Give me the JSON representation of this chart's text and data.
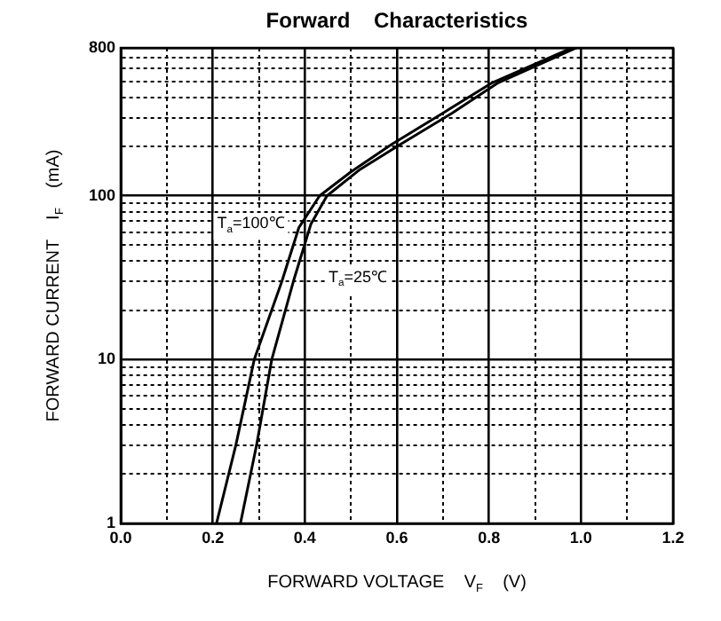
{
  "chart_data": {
    "type": "line",
    "title": "Forward    Characteristics",
    "xlabel": "FORWARD VOLTAGE    V$_{F}$    (V)",
    "ylabel": "FORWARD CURRENT    I$_{F}$    (mA)",
    "series": [
      {
        "name": "T$_{a}$=100℃",
        "color": "#000000",
        "x": [
          0.208,
          0.25,
          0.29,
          0.35,
          0.387,
          0.432,
          0.5,
          0.587,
          0.7,
          0.807,
          0.98
        ],
        "values": [
          1,
          3,
          10,
          30,
          64,
          100,
          140,
          205,
          320,
          490,
          800
        ]
      },
      {
        "name": "T$_{a}$=25℃",
        "color": "#000000",
        "x": [
          0.26,
          0.295,
          0.328,
          0.375,
          0.413,
          0.448,
          0.52,
          0.606,
          0.72,
          0.82,
          0.99
        ],
        "values": [
          1,
          3,
          10,
          30,
          67,
          100,
          145,
          205,
          320,
          490,
          800
        ]
      }
    ],
    "xlim": [
      0,
      1.2
    ],
    "xticks": [
      {
        "value": 0,
        "label": "0.0"
      },
      {
        "value": 0.1,
        "label": null
      },
      {
        "value": 0.2,
        "label": "0.2"
      },
      {
        "value": 0.3,
        "label": null
      },
      {
        "value": 0.4,
        "label": "0.4"
      },
      {
        "value": 0.5,
        "label": null
      },
      {
        "value": 0.6,
        "label": "0.6"
      },
      {
        "value": 0.7,
        "label": null
      },
      {
        "value": 0.8,
        "label": "0.8"
      },
      {
        "value": 0.9,
        "label": null
      },
      {
        "value": 1,
        "label": "1.0"
      },
      {
        "value": 1.1,
        "label": null
      },
      {
        "value": 1.2,
        "label": "1.2"
      }
    ],
    "ylim": [
      1,
      800
    ],
    "yticks": [
      1,
      {
        "value": 2,
        "label": null
      },
      {
        "value": 3,
        "label": null
      },
      {
        "value": 4,
        "label": null
      },
      {
        "value": 5,
        "label": null
      },
      {
        "value": 6,
        "label": null
      },
      {
        "value": 7,
        "label": null
      },
      {
        "value": 8,
        "label": null
      },
      {
        "value": 9,
        "label": null
      },
      10,
      {
        "value": 20,
        "label": null
      },
      {
        "value": 30,
        "label": null
      },
      {
        "value": 40,
        "label": null
      },
      {
        "value": 50,
        "label": null
      },
      {
        "value": 60,
        "label": null
      },
      {
        "value": 70,
        "label": null
      },
      {
        "value": 80,
        "label": null
      },
      {
        "value": 90,
        "label": null
      },
      100,
      {
        "value": 200,
        "label": null
      },
      {
        "value": 300,
        "label": null
      },
      {
        "value": 400,
        "label": null
      },
      {
        "value": 500,
        "label": null
      },
      {
        "value": 600,
        "label": null
      },
      {
        "value": 700,
        "label": null
      },
      800
    ],
    "log": "y",
    "grid": true,
    "legend": false,
    "marker": "none",
    "line_style": "solid"
  }
}
